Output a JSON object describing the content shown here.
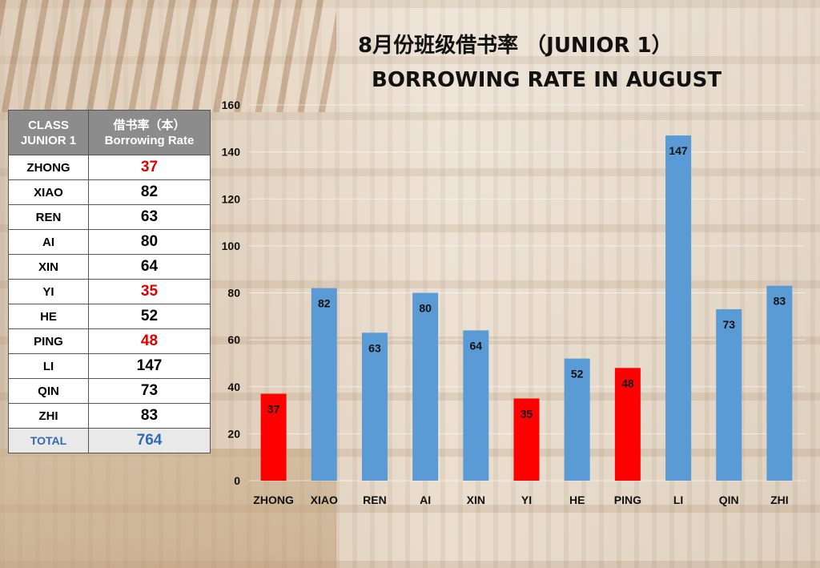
{
  "title": {
    "line1": "8月份班级借书率 （JUNIOR 1）",
    "line2": "BORROWING RATE IN AUGUST"
  },
  "table": {
    "header_col1": "CLASS JUNIOR 1",
    "header_col2_line1": "借书率（本）",
    "header_col2_line2": "Borrowing Rate",
    "rows": [
      {
        "name": "ZHONG",
        "value": "37",
        "highlight": true
      },
      {
        "name": "XIAO",
        "value": "82",
        "highlight": false
      },
      {
        "name": "REN",
        "value": "63",
        "highlight": false
      },
      {
        "name": "AI",
        "value": "80",
        "highlight": false
      },
      {
        "name": "XIN",
        "value": "64",
        "highlight": false
      },
      {
        "name": "YI",
        "value": "35",
        "highlight": true
      },
      {
        "name": "HE",
        "value": "52",
        "highlight": false
      },
      {
        "name": "PING",
        "value": "48",
        "highlight": true
      },
      {
        "name": "LI",
        "value": "147",
        "highlight": false
      },
      {
        "name": "QIN",
        "value": "73",
        "highlight": false
      },
      {
        "name": "ZHI",
        "value": "83",
        "highlight": false
      }
    ],
    "total_label": "TOTAL",
    "total_value": "764"
  },
  "colors": {
    "bar_default": "#5b9bd5",
    "bar_highlight": "#ff0000",
    "highlight_text": "#e00000",
    "total_text": "#2e6bb3"
  },
  "chart_data": {
    "type": "bar",
    "title": "8月份班级借书率 （JUNIOR 1） BORROWING RATE IN AUGUST",
    "categories": [
      "ZHONG",
      "XIAO",
      "REN",
      "AI",
      "XIN",
      "YI",
      "HE",
      "PING",
      "LI",
      "QIN",
      "ZHI"
    ],
    "values": [
      37,
      82,
      63,
      80,
      64,
      35,
      52,
      48,
      147,
      73,
      83
    ],
    "highlighted": [
      "ZHONG",
      "YI",
      "PING"
    ],
    "ylim": [
      0,
      160
    ],
    "yticks": [
      0,
      20,
      40,
      60,
      80,
      100,
      120,
      140,
      160
    ],
    "xlabel": "",
    "ylabel": "",
    "grid": true,
    "data_labels": true,
    "legend": "none"
  }
}
